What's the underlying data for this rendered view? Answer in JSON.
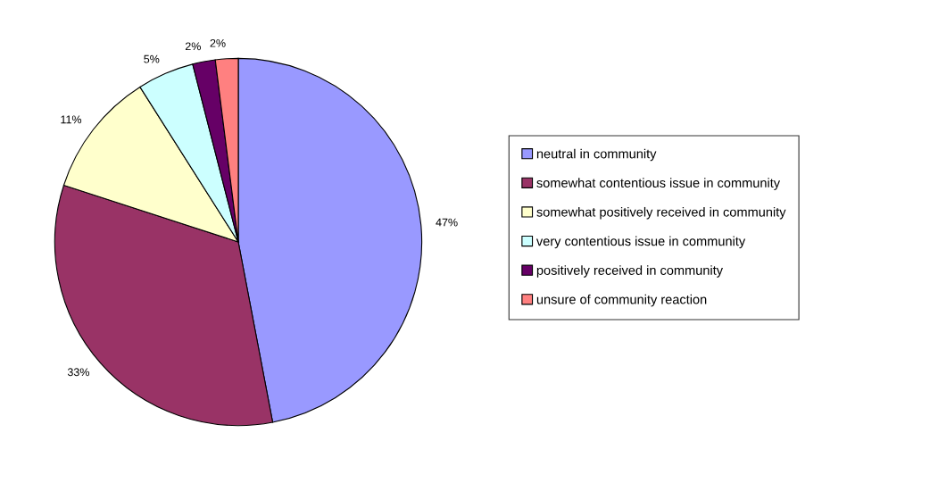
{
  "chart_data": {
    "type": "pie",
    "categories": [
      "neutral in community",
      "somewhat contentious issue in community",
      "somewhat positively received in community",
      "very contentious issue in community",
      "positively received in community",
      "unsure of community reaction"
    ],
    "values": [
      47,
      33,
      11,
      5,
      2,
      2
    ],
    "value_labels": [
      "47%",
      "33%",
      "11%",
      "5%",
      "2%",
      "2%"
    ],
    "colors": [
      "#9999ff",
      "#993366",
      "#ffffcc",
      "#ccffff",
      "#660066",
      "#ff8080"
    ],
    "legend": "right"
  }
}
